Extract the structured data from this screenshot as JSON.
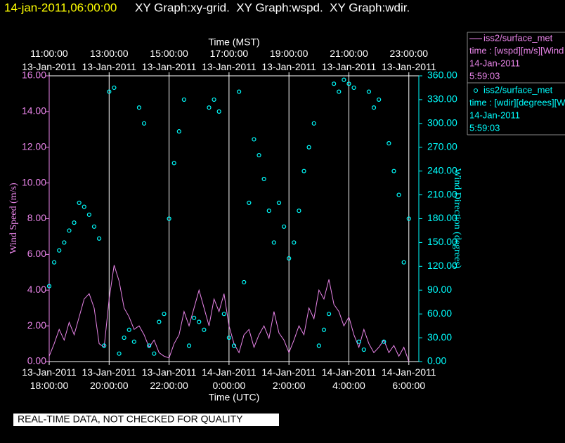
{
  "chart_data": {
    "type": "line",
    "title": "14-jan-2011,06:00:00",
    "subtitle": "XY Graph:xy-grid.  XY Graph:wspd.  XY Graph:wdir.",
    "xlabel": "Time (UTC)",
    "x2label": "Time (MST)",
    "ylabel": "Wind Speed (m/s)",
    "y2label": "Wind Direction (degrees)",
    "note": "REAL-TIME DATA, NOT CHECKED FOR QUALITY",
    "grid": true,
    "xlim": [
      "2011-01-13T18:00",
      "2011-01-14T06:20"
    ],
    "xticks": [
      {
        "value": "2011-01-13T18:00",
        "label": "13-Jan-2011 18:00:00"
      },
      {
        "value": "2011-01-13T20:00",
        "label": "13-Jan-2011 20:00:00"
      },
      {
        "value": "2011-01-13T22:00",
        "label": "13-Jan-2011 22:00:00"
      },
      {
        "value": "2011-01-14T00:00",
        "label": "14-Jan-2011 0:00:00"
      },
      {
        "value": "2011-01-14T02:00",
        "label": "14-Jan-2011 2:00:00"
      },
      {
        "value": "2011-01-14T04:00",
        "label": "14-Jan-2011 4:00:00"
      },
      {
        "value": "2011-01-14T06:00",
        "label": "14-Jan-2011 6:00:00"
      }
    ],
    "x2ticks": [
      {
        "value": "2011-01-13T18:00",
        "label": "13-Jan-2011 11:00:00"
      },
      {
        "value": "2011-01-13T20:00",
        "label": "13-Jan-2011 13:00:00"
      },
      {
        "value": "2011-01-13T22:00",
        "label": "13-Jan-2011 15:00:00"
      },
      {
        "value": "2011-01-14T00:00",
        "label": "13-Jan-2011 17:00:00"
      },
      {
        "value": "2011-01-14T02:00",
        "label": "13-Jan-2011 19:00:00"
      },
      {
        "value": "2011-01-14T04:00",
        "label": "13-Jan-2011 21:00:00"
      },
      {
        "value": "2011-01-14T06:00",
        "label": "13-Jan-2011 23:00:00"
      }
    ],
    "ylim": [
      0,
      16
    ],
    "yticks": [
      {
        "value": 0,
        "label": "0.00"
      },
      {
        "value": 2,
        "label": "2.00"
      },
      {
        "value": 4,
        "label": "4.00"
      },
      {
        "value": 6,
        "label": "6.00"
      },
      {
        "value": 8,
        "label": "8.00"
      },
      {
        "value": 10,
        "label": "10.00"
      },
      {
        "value": 12,
        "label": "12.00"
      },
      {
        "value": 14,
        "label": "14.00"
      },
      {
        "value": 16,
        "label": "16.00"
      }
    ],
    "y2lim": [
      0,
      360
    ],
    "y2ticks": [
      {
        "value": 0,
        "label": "0.00"
      },
      {
        "value": 30,
        "label": "30.00"
      },
      {
        "value": 60,
        "label": "60.00"
      },
      {
        "value": 90,
        "label": "90.00"
      },
      {
        "value": 120,
        "label": "120.00"
      },
      {
        "value": 150,
        "label": "150.00"
      },
      {
        "value": 180,
        "label": "180.00"
      },
      {
        "value": 210,
        "label": "210.00"
      },
      {
        "value": 240,
        "label": "240.00"
      },
      {
        "value": 270,
        "label": "270.00"
      },
      {
        "value": 300,
        "label": "300.00"
      },
      {
        "value": 330,
        "label": "330.00"
      },
      {
        "value": 360,
        "label": "360.00"
      }
    ],
    "x": [
      "2011-01-13T18:00",
      "2011-01-13T18:10",
      "2011-01-13T18:20",
      "2011-01-13T18:30",
      "2011-01-13T18:40",
      "2011-01-13T18:50",
      "2011-01-13T19:00",
      "2011-01-13T19:10",
      "2011-01-13T19:20",
      "2011-01-13T19:30",
      "2011-01-13T19:40",
      "2011-01-13T19:50",
      "2011-01-13T20:00",
      "2011-01-13T20:10",
      "2011-01-13T20:20",
      "2011-01-13T20:30",
      "2011-01-13T20:40",
      "2011-01-13T20:50",
      "2011-01-13T21:00",
      "2011-01-13T21:10",
      "2011-01-13T21:20",
      "2011-01-13T21:30",
      "2011-01-13T21:40",
      "2011-01-13T21:50",
      "2011-01-13T22:00",
      "2011-01-13T22:10",
      "2011-01-13T22:20",
      "2011-01-13T22:30",
      "2011-01-13T22:40",
      "2011-01-13T22:50",
      "2011-01-13T23:00",
      "2011-01-13T23:10",
      "2011-01-13T23:20",
      "2011-01-13T23:30",
      "2011-01-13T23:40",
      "2011-01-13T23:50",
      "2011-01-14T00:00",
      "2011-01-14T00:10",
      "2011-01-14T00:20",
      "2011-01-14T00:30",
      "2011-01-14T00:40",
      "2011-01-14T00:50",
      "2011-01-14T01:00",
      "2011-01-14T01:10",
      "2011-01-14T01:20",
      "2011-01-14T01:30",
      "2011-01-14T01:40",
      "2011-01-14T01:50",
      "2011-01-14T02:00",
      "2011-01-14T02:10",
      "2011-01-14T02:20",
      "2011-01-14T02:30",
      "2011-01-14T02:40",
      "2011-01-14T02:50",
      "2011-01-14T03:00",
      "2011-01-14T03:10",
      "2011-01-14T03:20",
      "2011-01-14T03:30",
      "2011-01-14T03:40",
      "2011-01-14T03:50",
      "2011-01-14T04:00",
      "2011-01-14T04:10",
      "2011-01-14T04:20",
      "2011-01-14T04:30",
      "2011-01-14T04:40",
      "2011-01-14T04:50",
      "2011-01-14T05:00",
      "2011-01-14T05:10",
      "2011-01-14T05:20",
      "2011-01-14T05:30",
      "2011-01-14T05:40",
      "2011-01-14T05:50",
      "2011-01-14T06:00"
    ],
    "series": [
      {
        "name": "iss2/surface_met",
        "type": "line",
        "color": "#e884e8",
        "axis": "y",
        "legend_lines": [
          "time : [wspd][m/s][Wind",
          "14-Jan-2011",
          "5:59:03"
        ],
        "values": [
          0.3,
          1.0,
          1.8,
          1.2,
          2.2,
          1.5,
          2.5,
          3.5,
          3.8,
          3.0,
          1.0,
          0.8,
          3.5,
          5.4,
          4.5,
          3.0,
          2.5,
          1.8,
          2.0,
          1.5,
          0.8,
          1.2,
          0.5,
          0.3,
          0.2,
          1.0,
          1.5,
          2.8,
          2.0,
          3.0,
          4.0,
          3.0,
          2.0,
          3.5,
          2.8,
          3.8,
          2.0,
          1.0,
          0.5,
          1.5,
          1.8,
          0.8,
          1.5,
          2.0,
          1.3,
          2.8,
          1.6,
          1.2,
          0.5,
          1.2,
          2.0,
          1.5,
          3.0,
          2.4,
          4.0,
          3.5,
          4.6,
          3.2,
          2.8,
          2.0,
          2.5,
          1.5,
          0.8,
          1.8,
          1.0,
          0.5,
          0.8,
          1.2,
          0.5,
          0.9,
          0.3,
          0.8,
          0.0
        ]
      },
      {
        "name": "iss2/surface_met",
        "type": "scatter",
        "color": "#00ffff",
        "axis": "y2",
        "legend_lines": [
          "time : [wdir][degrees][W",
          "14-Jan-2011",
          "5:59:03"
        ],
        "values": [
          95,
          125,
          140,
          150,
          165,
          175,
          200,
          195,
          185,
          170,
          155,
          20,
          340,
          345,
          10,
          30,
          40,
          25,
          320,
          300,
          20,
          10,
          50,
          60,
          180,
          250,
          290,
          330,
          20,
          55,
          50,
          40,
          320,
          330,
          315,
          60,
          30,
          20,
          340,
          100,
          200,
          280,
          260,
          230,
          190,
          150,
          200,
          170,
          130,
          150,
          190,
          240,
          270,
          300,
          20,
          40,
          60,
          350,
          340,
          355,
          350,
          345,
          25,
          15,
          340,
          320,
          330,
          25,
          275,
          240,
          210,
          125,
          180
        ]
      }
    ]
  }
}
